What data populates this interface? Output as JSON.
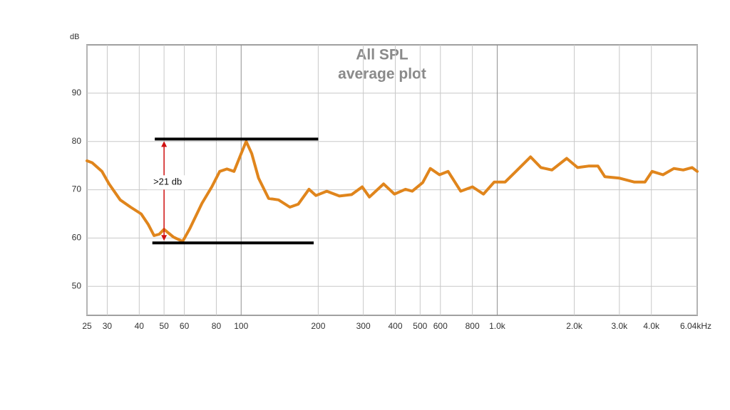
{
  "chart_data": {
    "type": "line",
    "title": "All SPL",
    "subtitle": "average plot",
    "y_label": "dB",
    "x_scale": "log",
    "grid": true,
    "xlim": [
      25,
      6040
    ],
    "xticks": [
      25,
      30,
      40,
      50,
      60,
      80,
      100,
      200,
      300,
      400,
      500,
      600,
      800,
      {
        "value": 1000,
        "label": "1.0k"
      },
      {
        "value": 2000,
        "label": "2.0k"
      },
      {
        "value": 3000,
        "label": "3.0k"
      },
      {
        "value": 4000,
        "label": "4.0k"
      },
      {
        "value": 6040,
        "label": "6.04kHz"
      }
    ],
    "ylim": [
      44,
      100
    ],
    "yticks": [
      50,
      60,
      70,
      80,
      90
    ],
    "series": [
      {
        "color": "#e0851c",
        "x": [
          25,
          26.2,
          28.6,
          30.5,
          33.7,
          37,
          40.7,
          43.4,
          45.7,
          47.9,
          50,
          54.4,
          59.1,
          63.1,
          70.3,
          76.8,
          82.5,
          88,
          93.8,
          100,
          104.6,
          110,
          117,
          128,
          140,
          155,
          167,
          184,
          196,
          216,
          242,
          270,
          297,
          317,
          360,
          397,
          438,
          466,
          512,
          548,
          595,
          643,
          720,
          801,
          884,
          974,
          1074,
          1183,
          1349,
          1481,
          1636,
          1868,
          2060,
          2274,
          2474,
          2632,
          3004,
          3424,
          3776,
          4026,
          4440,
          4898,
          5326,
          5766,
          6040
        ],
        "values": [
          76,
          75.6,
          73.8,
          71.2,
          67.9,
          66.4,
          65,
          62.8,
          60.5,
          60.8,
          61.8,
          60.2,
          59.3,
          62,
          67.2,
          70.6,
          73.8,
          74.3,
          73.8,
          77.5,
          80,
          77.5,
          72.4,
          68.2,
          67.9,
          66.4,
          67,
          70.1,
          68.8,
          69.7,
          68.7,
          69,
          70.6,
          68.5,
          71.2,
          69.1,
          70.1,
          69.7,
          71.5,
          74.4,
          73.1,
          73.8,
          69.7,
          70.6,
          69.1,
          71.6,
          71.6,
          73.8,
          76.8,
          74.6,
          74.1,
          76.5,
          74.6,
          74.9,
          74.9,
          72.7,
          72.4,
          71.6,
          71.6,
          73.8,
          73.1,
          74.4,
          74.1,
          74.6,
          73.8
        ]
      }
    ],
    "reference_lines": [
      {
        "y": 80.5,
        "x": [
          46,
          200
        ]
      },
      {
        "y": 59,
        "x": [
          45,
          192
        ]
      }
    ],
    "annotation": {
      "text": ">21 db",
      "x": 50
    }
  }
}
